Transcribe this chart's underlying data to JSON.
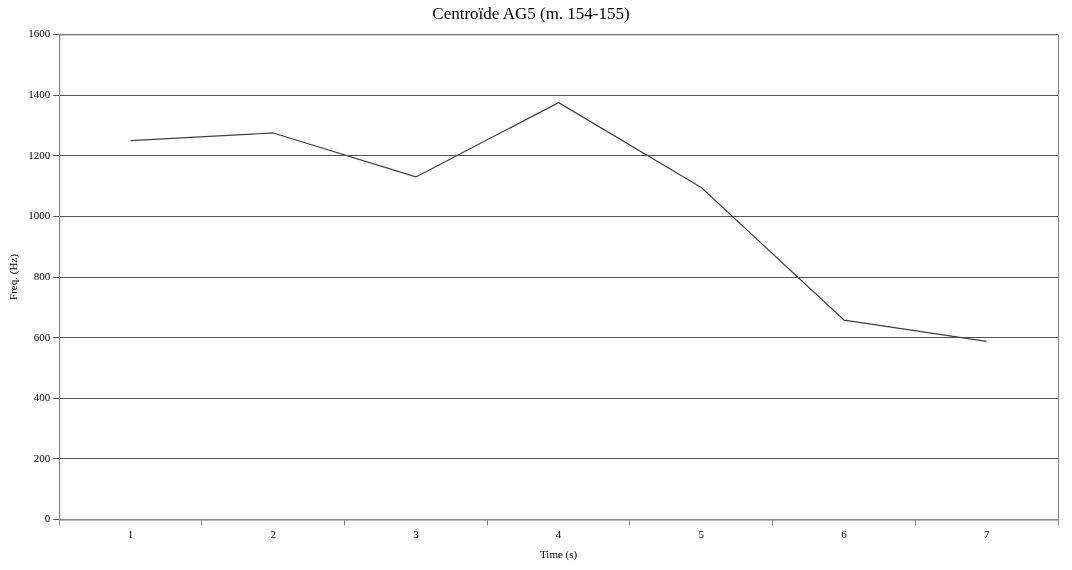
{
  "chart_data": {
    "type": "line",
    "title": "Centroïde AG5 (m. 154-155)",
    "xlabel": "Time (s)",
    "ylabel": "Freq. (Hz)",
    "categories": [
      "1",
      "2",
      "3",
      "4",
      "5",
      "6",
      "7"
    ],
    "series": [
      {
        "color": "#404040",
        "values": [
          1250,
          1275,
          1130,
          1375,
          1095,
          658,
          588
        ]
      }
    ],
    "ylim": [
      0,
      1600
    ],
    "yticks": [
      0,
      200,
      400,
      600,
      800,
      1000,
      1200,
      1400,
      1600
    ],
    "grid": "y",
    "legend": false,
    "marker": "none",
    "line_style": "solid"
  }
}
